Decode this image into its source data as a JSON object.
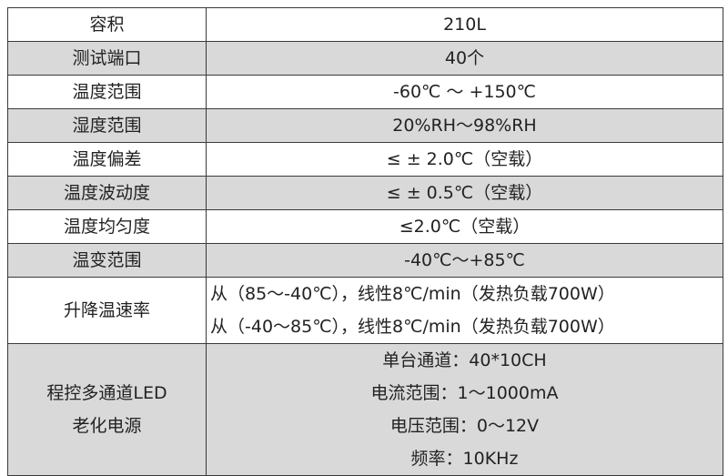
{
  "rows": [
    {
      "label": "容积",
      "values": [
        "210L"
      ]
    },
    {
      "label": "测试端口",
      "values": [
        "40个"
      ]
    },
    {
      "label": "温度范围",
      "values": [
        "-60℃ ～ +150℃"
      ]
    },
    {
      "label": "湿度范围",
      "values": [
        "20%RH～98%RH"
      ]
    },
    {
      "label": "温度偏差",
      "values": [
        "≤ ± 2.0℃（空载）"
      ]
    },
    {
      "label": "温度波动度",
      "values": [
        "≤ ± 0.5℃（空载）"
      ]
    },
    {
      "label": "温度均匀度",
      "values": [
        "≤2.0℃（空载）"
      ]
    },
    {
      "label": "温变范围",
      "values": [
        "-40℃～+85℃"
      ]
    },
    {
      "label": "升降温速率",
      "values": [
        "从（85～-40℃），线性8℃/min（发热负载700W）",
        "从（-40～85℃），线性8℃/min（发热负载700W）"
      ]
    },
    {
      "label_lines": [
        "程控多通道LED",
        "老化电源"
      ],
      "values": [
        "单台通道：40*10CH",
        "电流范围：1～1000mA",
        "电压范围：0～12V",
        "频率：10KHz"
      ]
    }
  ],
  "colors": {
    "shaded_row": "#d9d9d9",
    "border": "#3a3a3a"
  }
}
